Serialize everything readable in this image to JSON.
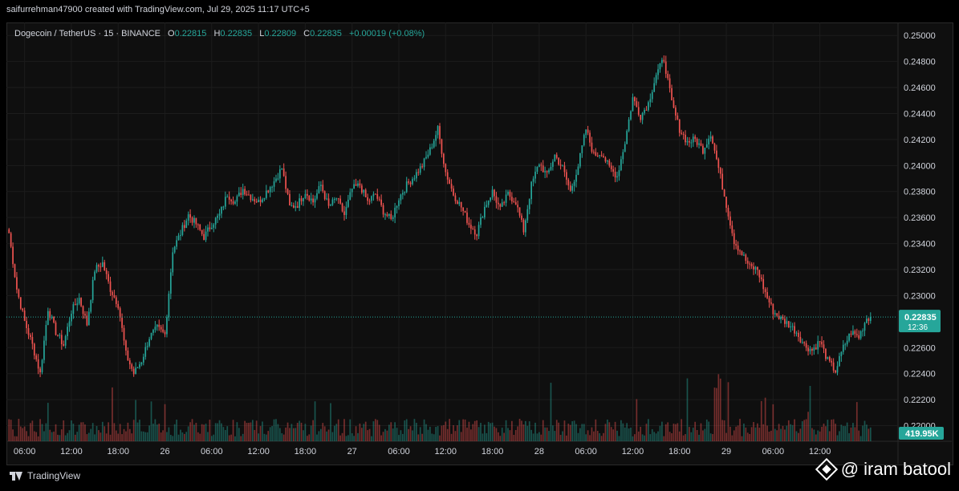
{
  "credit": "saifurrehman47900 created with TradingView.com, Jul 29, 2025 11:17 UTC+5",
  "legend": {
    "symbol": "Dogecoin / TetherUS · 15 · BINANCE",
    "o_label": "O",
    "o_value": "0.22815",
    "h_label": "H",
    "h_value": "0.22835",
    "l_label": "L",
    "l_value": "0.22809",
    "c_label": "C",
    "c_value": "0.22835",
    "change": "+0.00019 (+0.08%)"
  },
  "price_tag": {
    "value": "0.22835",
    "countdown": "12:36"
  },
  "volume_tag": "419.95K",
  "footer": {
    "brand": "TradingView"
  },
  "watermark": "@ iram batool",
  "colors": {
    "up": "#26a69a",
    "down": "#ef5350",
    "bg": "#0f0f0f",
    "grid": "#1c1c1c",
    "text": "#d1d4dc"
  },
  "chart_data": {
    "type": "candlestick",
    "y_ticks": [
      "0.25000",
      "0.24800",
      "0.24600",
      "0.24400",
      "0.24200",
      "0.24000",
      "0.23800",
      "0.23600",
      "0.23400",
      "0.23200",
      "0.23000",
      "0.22600",
      "0.22400",
      "0.22200",
      "0.22000"
    ],
    "ylim": [
      0.2188,
      0.251
    ],
    "x_ticks": [
      "06:00",
      "12:00",
      "18:00",
      "26",
      "06:00",
      "12:00",
      "18:00",
      "27",
      "06:00",
      "12:00",
      "18:00",
      "28",
      "06:00",
      "12:00",
      "18:00",
      "29",
      "06:00",
      "12:00"
    ],
    "x_tick_index": [
      8,
      32,
      56,
      80,
      104,
      128,
      152,
      176,
      200,
      224,
      248,
      272,
      296,
      320,
      344,
      368,
      392,
      416
    ],
    "close_anchors": [
      [
        0,
        0.2348
      ],
      [
        4,
        0.2305
      ],
      [
        8,
        0.228
      ],
      [
        12,
        0.2262
      ],
      [
        16,
        0.224
      ],
      [
        20,
        0.229
      ],
      [
        24,
        0.2272
      ],
      [
        28,
        0.2262
      ],
      [
        32,
        0.2288
      ],
      [
        36,
        0.2298
      ],
      [
        40,
        0.2278
      ],
      [
        44,
        0.232
      ],
      [
        48,
        0.2325
      ],
      [
        52,
        0.2305
      ],
      [
        56,
        0.2293
      ],
      [
        60,
        0.2255
      ],
      [
        64,
        0.224
      ],
      [
        68,
        0.225
      ],
      [
        72,
        0.2268
      ],
      [
        76,
        0.2275
      ],
      [
        80,
        0.227
      ],
      [
        84,
        0.2335
      ],
      [
        88,
        0.2348
      ],
      [
        92,
        0.2362
      ],
      [
        96,
        0.2355
      ],
      [
        100,
        0.2345
      ],
      [
        104,
        0.2355
      ],
      [
        108,
        0.2362
      ],
      [
        112,
        0.2378
      ],
      [
        116,
        0.2372
      ],
      [
        120,
        0.2382
      ],
      [
        124,
        0.2376
      ],
      [
        128,
        0.2372
      ],
      [
        132,
        0.238
      ],
      [
        136,
        0.2388
      ],
      [
        140,
        0.2398
      ],
      [
        144,
        0.2368
      ],
      [
        148,
        0.237
      ],
      [
        152,
        0.238
      ],
      [
        156,
        0.2372
      ],
      [
        160,
        0.2385
      ],
      [
        164,
        0.2368
      ],
      [
        168,
        0.2375
      ],
      [
        172,
        0.2362
      ],
      [
        176,
        0.2382
      ],
      [
        180,
        0.2385
      ],
      [
        184,
        0.2372
      ],
      [
        188,
        0.2378
      ],
      [
        192,
        0.2365
      ],
      [
        196,
        0.2358
      ],
      [
        200,
        0.2375
      ],
      [
        204,
        0.2385
      ],
      [
        208,
        0.2392
      ],
      [
        212,
        0.24
      ],
      [
        216,
        0.2412
      ],
      [
        220,
        0.2428
      ],
      [
        224,
        0.2395
      ],
      [
        228,
        0.2378
      ],
      [
        232,
        0.2368
      ],
      [
        236,
        0.2355
      ],
      [
        240,
        0.2348
      ],
      [
        244,
        0.2368
      ],
      [
        248,
        0.238
      ],
      [
        252,
        0.2366
      ],
      [
        256,
        0.2378
      ],
      [
        260,
        0.2372
      ],
      [
        264,
        0.235
      ],
      [
        268,
        0.2385
      ],
      [
        272,
        0.2402
      ],
      [
        276,
        0.2392
      ],
      [
        280,
        0.2408
      ],
      [
        284,
        0.2398
      ],
      [
        288,
        0.238
      ],
      [
        292,
        0.24
      ],
      [
        296,
        0.2428
      ],
      [
        300,
        0.2408
      ],
      [
        304,
        0.241
      ],
      [
        308,
        0.2398
      ],
      [
        312,
        0.2392
      ],
      [
        316,
        0.2418
      ],
      [
        320,
        0.2452
      ],
      [
        324,
        0.2438
      ],
      [
        328,
        0.2448
      ],
      [
        332,
        0.247
      ],
      [
        336,
        0.2482
      ],
      [
        340,
        0.2448
      ],
      [
        344,
        0.2428
      ],
      [
        348,
        0.2418
      ],
      [
        352,
        0.242
      ],
      [
        356,
        0.2412
      ],
      [
        360,
        0.2425
      ],
      [
        364,
        0.2398
      ],
      [
        368,
        0.237
      ],
      [
        372,
        0.2342
      ],
      [
        376,
        0.2332
      ],
      [
        380,
        0.2322
      ],
      [
        384,
        0.232
      ],
      [
        388,
        0.2302
      ],
      [
        392,
        0.2288
      ],
      [
        396,
        0.2282
      ],
      [
        400,
        0.2278
      ],
      [
        404,
        0.2272
      ],
      [
        408,
        0.2262
      ],
      [
        412,
        0.2258
      ],
      [
        416,
        0.2265
      ],
      [
        420,
        0.225
      ],
      [
        424,
        0.2242
      ],
      [
        428,
        0.226
      ],
      [
        432,
        0.2272
      ],
      [
        436,
        0.2268
      ],
      [
        440,
        0.2283
      ]
    ],
    "last_close": 0.22835,
    "volume_note": "volume bars in lower pane"
  }
}
